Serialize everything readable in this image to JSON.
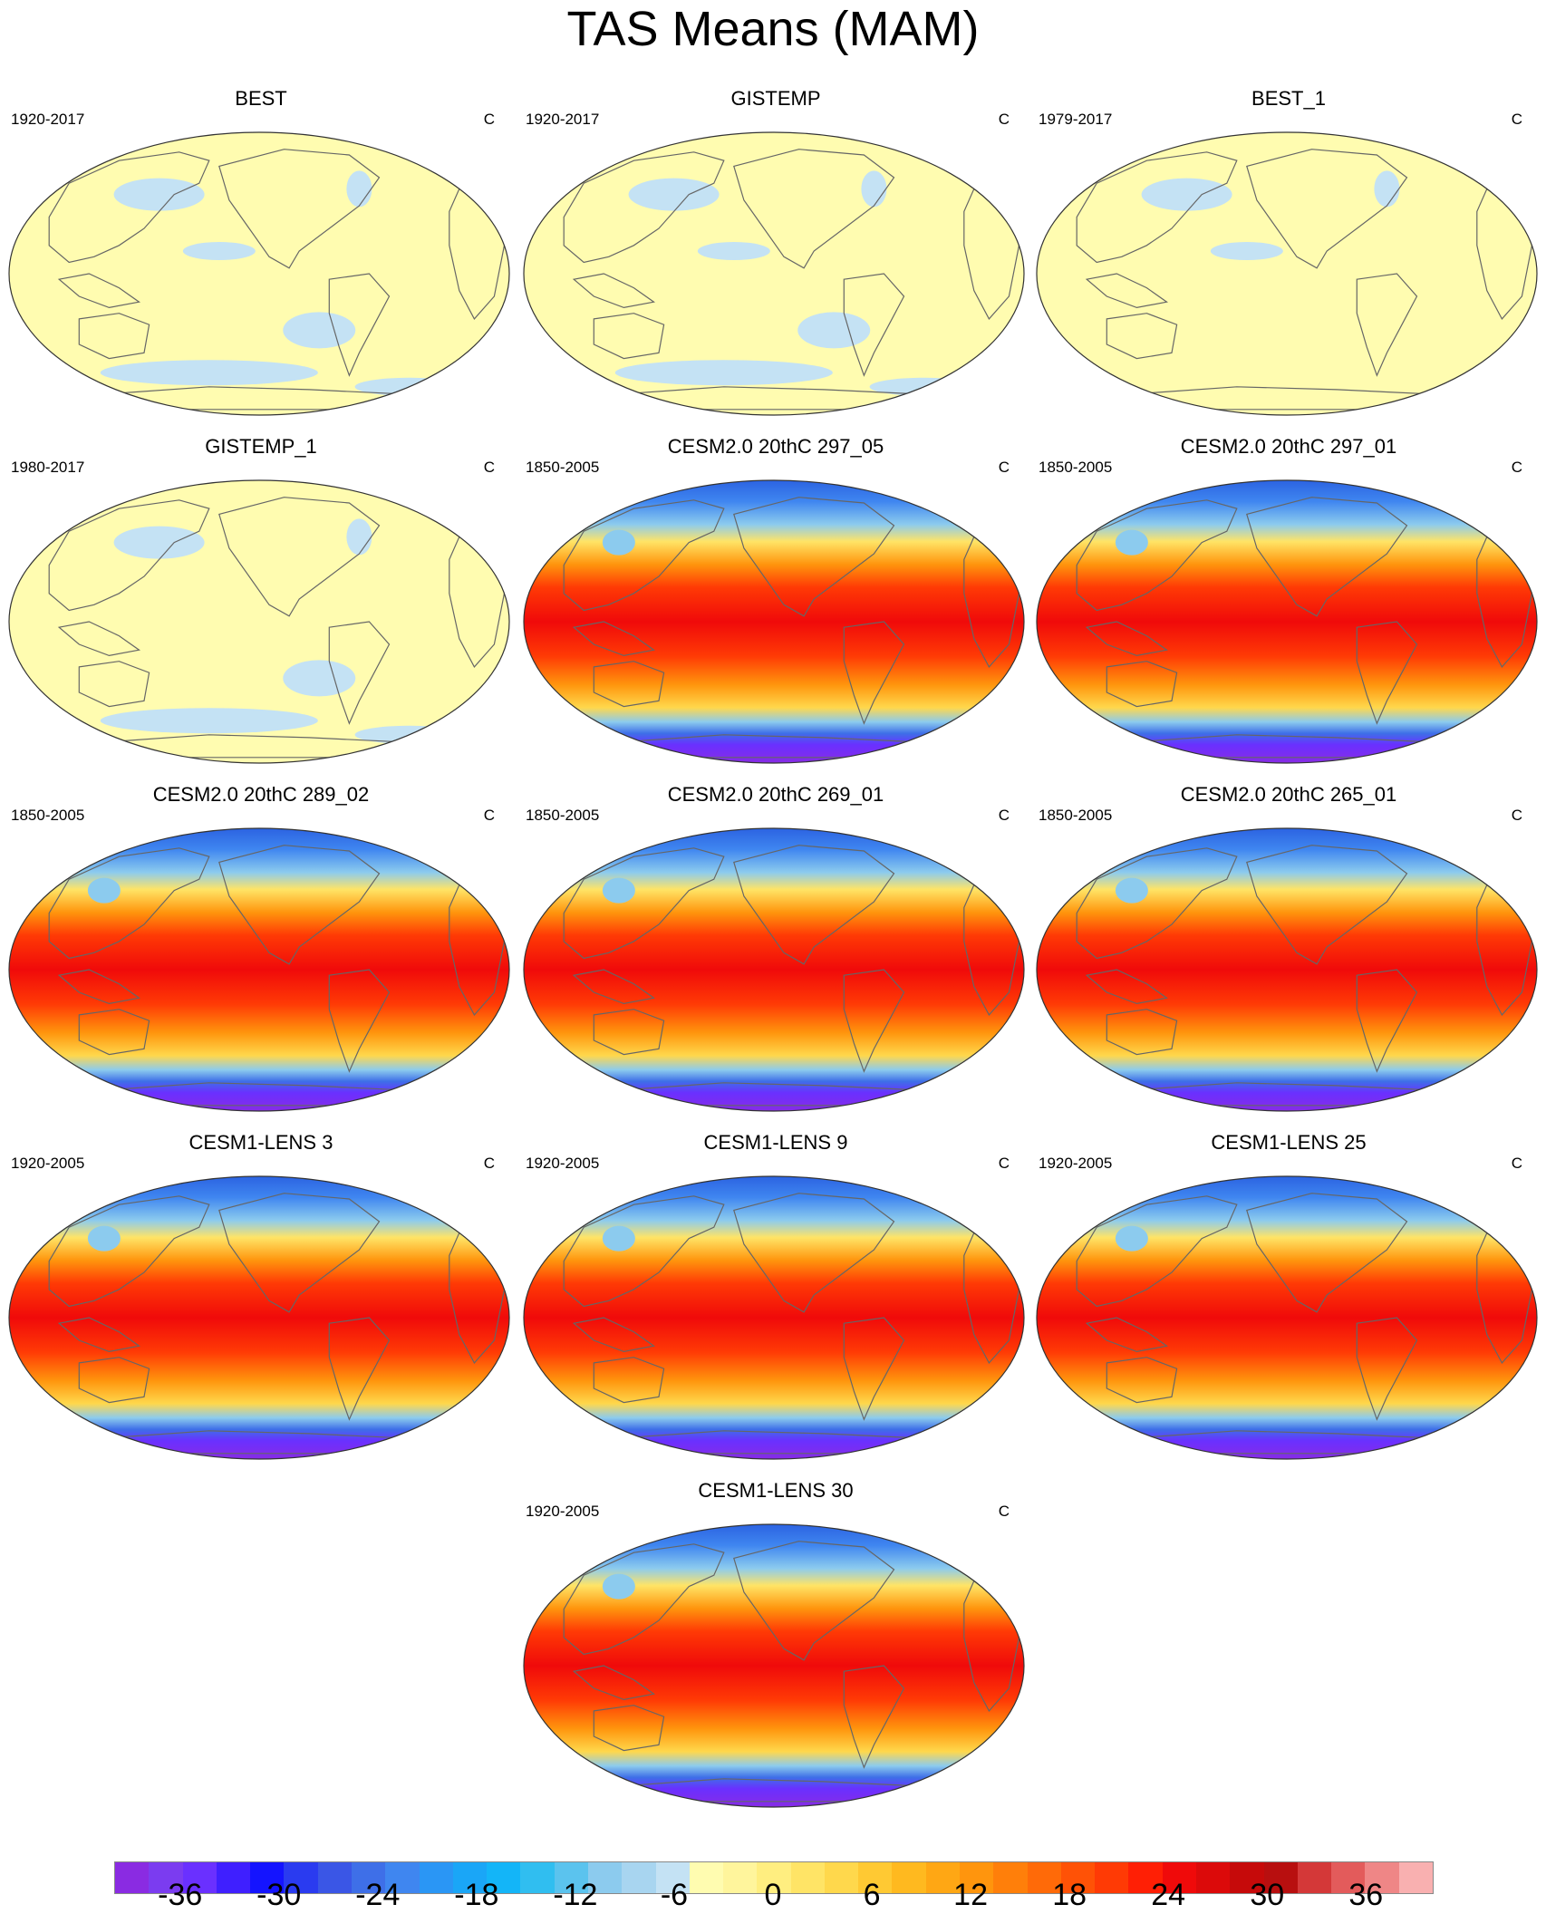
{
  "figure": {
    "title": "TAS Means (MAM)"
  },
  "panels": [
    {
      "title": "BEST",
      "period": "1920-2017",
      "unit": "C",
      "kind": "obs",
      "row": 0,
      "col": 0
    },
    {
      "title": "GISTEMP",
      "period": "1920-2017",
      "unit": "C",
      "kind": "obs",
      "row": 0,
      "col": 1
    },
    {
      "title": "BEST_1",
      "period": "1979-2017",
      "unit": "C",
      "kind": "obs",
      "row": 0,
      "col": 2
    },
    {
      "title": "GISTEMP_1",
      "period": "1980-2017",
      "unit": "C",
      "kind": "obs",
      "row": 1,
      "col": 0
    },
    {
      "title": "CESM2.0 20thC 297_05",
      "period": "1850-2005",
      "unit": "C",
      "kind": "model",
      "row": 1,
      "col": 1
    },
    {
      "title": "CESM2.0 20thC 297_01",
      "period": "1850-2005",
      "unit": "C",
      "kind": "model",
      "row": 1,
      "col": 2
    },
    {
      "title": "CESM2.0 20thC 289_02",
      "period": "1850-2005",
      "unit": "C",
      "kind": "model",
      "row": 2,
      "col": 0
    },
    {
      "title": "CESM2.0 20thC 269_01",
      "period": "1850-2005",
      "unit": "C",
      "kind": "model",
      "row": 2,
      "col": 1
    },
    {
      "title": "CESM2.0 20thC 265_01",
      "period": "1850-2005",
      "unit": "C",
      "kind": "model",
      "row": 2,
      "col": 2
    },
    {
      "title": "CESM1-LENS 3",
      "period": "1920-2005",
      "unit": "C",
      "kind": "model",
      "row": 3,
      "col": 0
    },
    {
      "title": "CESM1-LENS 9",
      "period": "1920-2005",
      "unit": "C",
      "kind": "model",
      "row": 3,
      "col": 1
    },
    {
      "title": "CESM1-LENS 25",
      "period": "1920-2005",
      "unit": "C",
      "kind": "model",
      "row": 3,
      "col": 2
    },
    {
      "title": "CESM1-LENS 30",
      "period": "1920-2005",
      "unit": "C",
      "kind": "model",
      "row": 4,
      "col": 1
    }
  ],
  "colorbar": {
    "colors": [
      "#8a2be2",
      "#7b3cf0",
      "#6a30ff",
      "#3f1fff",
      "#1414ff",
      "#2a3bf0",
      "#3a56e6",
      "#3e6fe8",
      "#3f86f0",
      "#2a96f5",
      "#1aa6f7",
      "#13b5f8",
      "#30bef0",
      "#5bc3ee",
      "#8ccbee",
      "#a8d5f0",
      "#c4e2f4",
      "#fffcb0",
      "#fff59c",
      "#ffee80",
      "#ffe466",
      "#ffd84c",
      "#ffc933",
      "#ffb91f",
      "#ffa714",
      "#ff950d",
      "#ff7f0a",
      "#ff6a08",
      "#ff5206",
      "#ff3a05",
      "#ff1f05",
      "#f00a0a",
      "#dc0a0a",
      "#c60a0a",
      "#b80f0f",
      "#d43838",
      "#e35b5b",
      "#ef8686",
      "#f9b0b0"
    ],
    "tick_labels": [
      "-36",
      "-30",
      "-24",
      "-18",
      "-12",
      "-6",
      "0",
      "6",
      "12",
      "18",
      "24",
      "30",
      "36"
    ],
    "tick_values": [
      -36,
      -30,
      -24,
      -18,
      -12,
      -6,
      0,
      6,
      12,
      18,
      24,
      30,
      36
    ],
    "range": [
      -40,
      40
    ]
  }
}
